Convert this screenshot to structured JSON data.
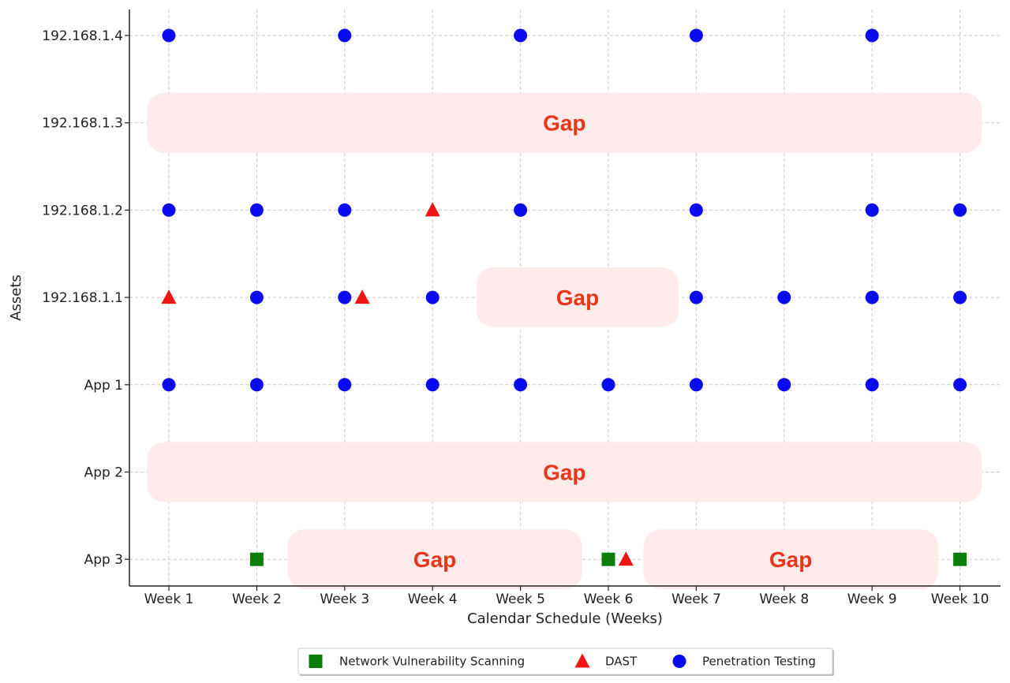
{
  "chart_data": {
    "type": "scatter",
    "title": "",
    "xlabel": "Calendar Schedule (Weeks)",
    "ylabel": "Assets",
    "categories_x": [
      "Week 1",
      "Week 2",
      "Week 3",
      "Week 4",
      "Week 5",
      "Week 6",
      "Week 7",
      "Week 8",
      "Week 9",
      "Week 10"
    ],
    "categories_y": [
      "App 3",
      "App 2",
      "App 1",
      "192.168.1.1",
      "192.168.1.2",
      "192.168.1.3",
      "192.168.1.4"
    ],
    "grid": true,
    "legend_position": "bottom-center",
    "series": [
      {
        "name": "Network Vulnerability Scanning",
        "marker": "square",
        "color": "#0a7d0a",
        "points": [
          {
            "x": 2,
            "y": "App 3"
          },
          {
            "x": 6,
            "y": "App 3"
          },
          {
            "x": 10,
            "y": "App 3"
          }
        ]
      },
      {
        "name": "DAST",
        "marker": "triangle",
        "color": "#f01414",
        "points": [
          {
            "x": 1,
            "y": "192.168.1.1"
          },
          {
            "x": 3.2,
            "y": "192.168.1.1"
          },
          {
            "x": 4,
            "y": "192.168.1.2"
          },
          {
            "x": 6.2,
            "y": "App 3"
          }
        ]
      },
      {
        "name": "Penetration Testing",
        "marker": "circle",
        "color": "#0a0af0",
        "points": [
          {
            "x": 1,
            "y": "192.168.1.4"
          },
          {
            "x": 3,
            "y": "192.168.1.4"
          },
          {
            "x": 5,
            "y": "192.168.1.4"
          },
          {
            "x": 7,
            "y": "192.168.1.4"
          },
          {
            "x": 9,
            "y": "192.168.1.4"
          },
          {
            "x": 1,
            "y": "192.168.1.2"
          },
          {
            "x": 2,
            "y": "192.168.1.2"
          },
          {
            "x": 3,
            "y": "192.168.1.2"
          },
          {
            "x": 5,
            "y": "192.168.1.2"
          },
          {
            "x": 7,
            "y": "192.168.1.2"
          },
          {
            "x": 9,
            "y": "192.168.1.2"
          },
          {
            "x": 10,
            "y": "192.168.1.2"
          },
          {
            "x": 2,
            "y": "192.168.1.1"
          },
          {
            "x": 3,
            "y": "192.168.1.1"
          },
          {
            "x": 4,
            "y": "192.168.1.1"
          },
          {
            "x": 7,
            "y": "192.168.1.1"
          },
          {
            "x": 8,
            "y": "192.168.1.1"
          },
          {
            "x": 9,
            "y": "192.168.1.1"
          },
          {
            "x": 10,
            "y": "192.168.1.1"
          },
          {
            "x": 1,
            "y": "App 1"
          },
          {
            "x": 2,
            "y": "App 1"
          },
          {
            "x": 3,
            "y": "App 1"
          },
          {
            "x": 4,
            "y": "App 1"
          },
          {
            "x": 5,
            "y": "App 1"
          },
          {
            "x": 6,
            "y": "App 1"
          },
          {
            "x": 7,
            "y": "App 1"
          },
          {
            "x": 8,
            "y": "App 1"
          },
          {
            "x": 9,
            "y": "App 1"
          },
          {
            "x": 10,
            "y": "App 1"
          }
        ]
      }
    ],
    "annotations": [
      {
        "text": "Gap",
        "y": "192.168.1.3",
        "x_start": 0.75,
        "x_end": 10.25
      },
      {
        "text": "Gap",
        "y": "192.168.1.1",
        "x_start": 4.5,
        "x_end": 6.8
      },
      {
        "text": "Gap",
        "y": "App 2",
        "x_start": 0.75,
        "x_end": 10.25
      },
      {
        "text": "Gap",
        "y": "App 3",
        "x_start": 2.35,
        "x_end": 5.7
      },
      {
        "text": "Gap",
        "y": "App 3",
        "x_start": 6.4,
        "x_end": 9.75
      }
    ],
    "annotation_fill": "#fdeaea",
    "annotation_text_color": "#e8361c"
  }
}
